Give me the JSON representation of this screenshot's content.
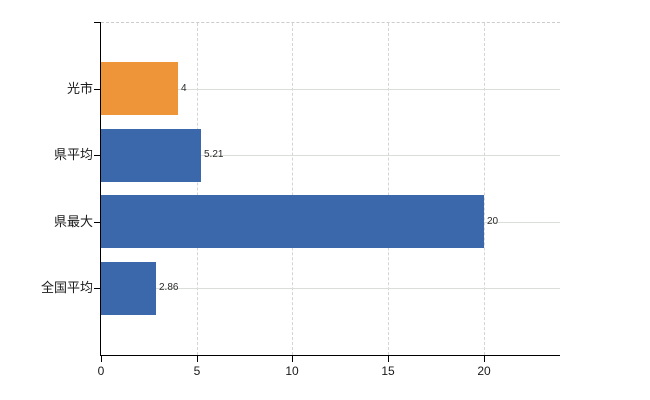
{
  "chart_data": {
    "type": "bar",
    "orientation": "horizontal",
    "title": "",
    "categories": [
      "光市",
      "県平均",
      "県最大",
      "全国平均"
    ],
    "values": [
      4,
      5.21,
      20,
      2.86
    ],
    "value_labels": [
      "4",
      "5.21",
      "20",
      "2.86"
    ],
    "bar_colors": [
      "#ef9539",
      "#3b68ab",
      "#3b68ab",
      "#3b68ab"
    ],
    "x_ticks": [
      0,
      5,
      10,
      15,
      20
    ],
    "x_tick_labels": [
      "0",
      "5",
      "10",
      "15",
      "20"
    ],
    "xlim": [
      0,
      24
    ],
    "legend": "none",
    "grid": {
      "horizontal_style": "solid",
      "vertical_style": "dashed",
      "horizontal_color": "#d9ded9",
      "vertical_color": "#d4d4d4",
      "top_border_style": "dashed",
      "top_border_color": "#cccccc"
    },
    "axis_color": "#000000",
    "label_color": "#1a1a1a",
    "value_label_color": "#2a2a2a"
  }
}
